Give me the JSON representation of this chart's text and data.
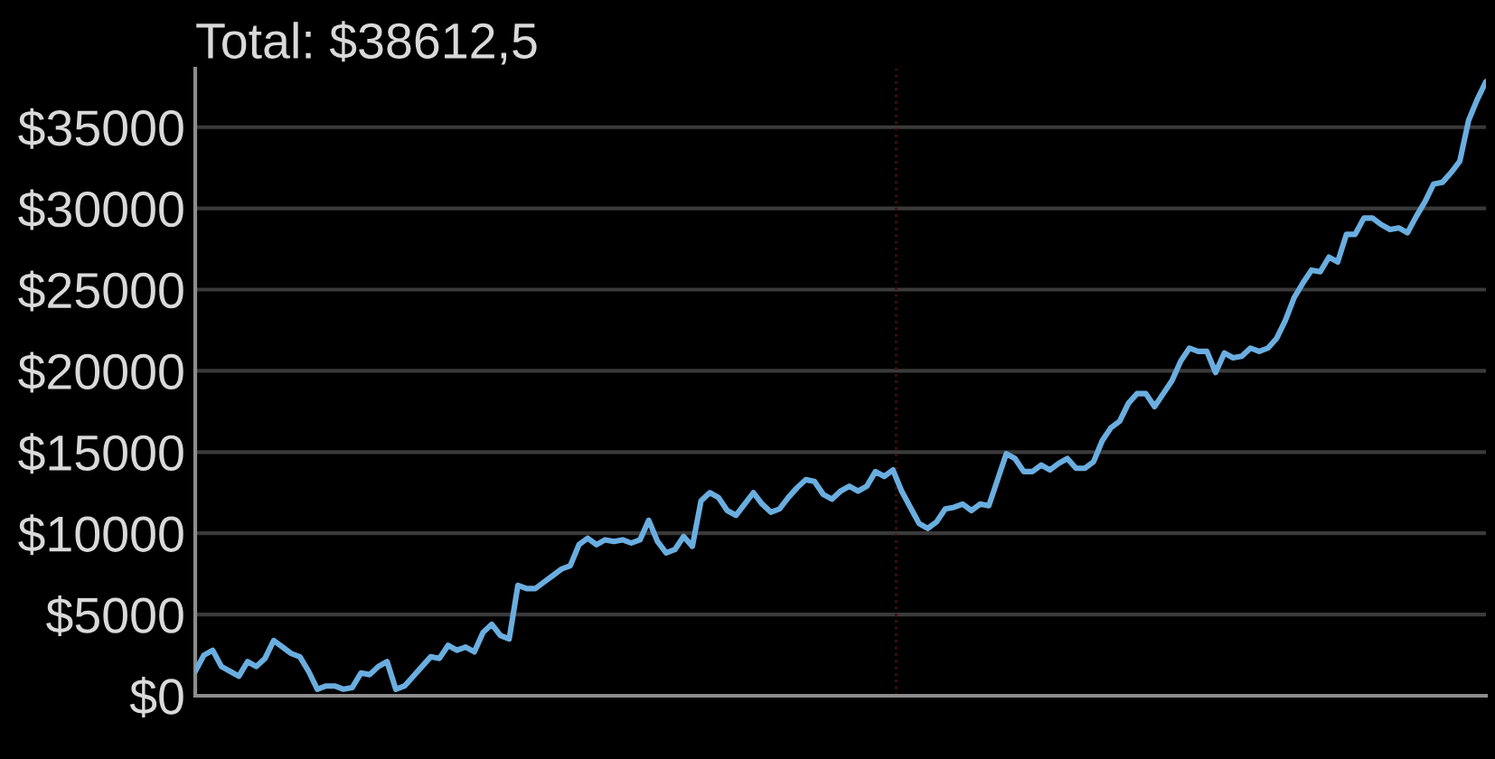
{
  "chart_data": {
    "type": "line",
    "title": "Total: $38612,5",
    "categories": [
      null,
      null,
      null,
      null,
      null,
      null,
      null,
      null,
      null,
      null,
      null,
      null,
      null,
      null,
      null,
      null,
      null,
      null,
      null,
      null,
      null,
      null,
      null,
      null,
      null,
      null,
      null,
      null,
      null,
      null,
      null,
      null,
      null,
      null,
      null,
      null,
      null,
      null,
      null,
      null,
      null,
      null,
      null,
      null,
      null,
      null,
      null,
      null,
      null,
      null,
      null,
      null,
      null,
      null,
      null,
      null,
      null,
      null,
      null,
      null,
      null,
      null,
      null,
      null,
      null,
      null,
      null,
      null,
      null,
      null,
      null,
      null,
      null,
      null,
      null,
      null,
      null,
      null,
      null,
      null,
      null,
      null,
      null,
      null,
      null,
      null,
      null,
      null,
      null,
      null,
      null,
      null,
      null,
      null,
      null,
      null,
      null,
      null,
      null,
      null,
      null,
      null,
      null,
      null,
      null,
      null,
      null,
      null,
      null,
      null,
      null,
      null,
      null,
      null,
      null,
      null,
      null,
      null,
      null,
      null,
      null,
      null,
      null,
      null,
      null,
      null,
      null,
      null,
      null,
      null,
      null,
      null,
      null,
      null,
      null,
      null,
      null,
      null,
      null,
      null,
      null,
      null,
      null,
      null,
      null,
      null,
      null,
      null,
      null
    ],
    "series": [
      {
        "color": "#6aaee0",
        "values": [
          1500,
          2500,
          2800,
          1800,
          1500,
          1200,
          2100,
          1800,
          2300,
          3400,
          3000,
          2600,
          2400,
          1500,
          400,
          600,
          600,
          400,
          500,
          1400,
          1300,
          1800,
          2100,
          400,
          600,
          1200,
          1800,
          2400,
          2300,
          3100,
          2800,
          3000,
          2700,
          3900,
          4400,
          3700,
          3500,
          6800,
          6600,
          6600,
          7000,
          7400,
          7800,
          8000,
          9300,
          9700,
          9300,
          9600,
          9500,
          9600,
          9400,
          9600,
          10800,
          9500,
          8800,
          9000,
          9800,
          9200,
          12000,
          12500,
          12200,
          11400,
          11100,
          11800,
          12500,
          11800,
          11300,
          11500,
          12200,
          12800,
          13300,
          13200,
          12400,
          12100,
          12600,
          12900,
          12600,
          12900,
          13800,
          13500,
          13900,
          12600,
          11600,
          10600,
          10300,
          10700,
          11500,
          11600,
          11800,
          11400,
          11800,
          11700,
          13300,
          14900,
          14600,
          13800,
          13800,
          14200,
          13900,
          14300,
          14600,
          14000,
          14000,
          14400,
          15700,
          16500,
          16900,
          18000,
          18600,
          18600,
          17800,
          18600,
          19400,
          20600,
          21400,
          21200,
          21200,
          19900,
          21100,
          20800,
          20900,
          21400,
          21200,
          21400,
          22000,
          23100,
          24500,
          25400,
          26200,
          26100,
          27000,
          26700,
          28400,
          28400,
          29400,
          29400,
          29000,
          28700,
          28800,
          28500,
          29500,
          30400,
          31500,
          31600,
          32200,
          32900,
          35400,
          36700,
          37800
        ]
      }
    ],
    "ylim": [
      0,
      38600
    ],
    "yticks": [
      {
        "value": 0,
        "label": "$0"
      },
      {
        "value": 5000,
        "label": "$5000"
      },
      {
        "value": 10000,
        "label": "$10000"
      },
      {
        "value": 15000,
        "label": "$15000"
      },
      {
        "value": 20000,
        "label": "$20000"
      },
      {
        "value": 25000,
        "label": "$25000"
      },
      {
        "value": 30000,
        "label": "$30000"
      },
      {
        "value": 35000,
        "label": "$35000"
      }
    ],
    "grid": "y",
    "tick_labels": "y",
    "line_style": "solid"
  }
}
